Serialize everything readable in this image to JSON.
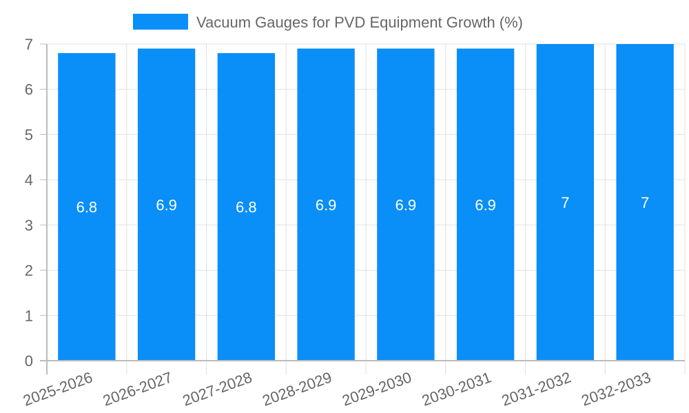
{
  "chart_data": {
    "type": "bar",
    "title": "",
    "legend": {
      "label": "Vacuum Gauges for PVD Equipment Growth (%)",
      "position": "top"
    },
    "categories": [
      "2025-2026",
      "2026-2027",
      "2027-2028",
      "2028-2029",
      "2029-2030",
      "2030-2031",
      "2031-2032",
      "2032-2033"
    ],
    "values": [
      6.8,
      6.9,
      6.8,
      6.9,
      6.9,
      6.9,
      7,
      7
    ],
    "data_labels": [
      "6.8",
      "6.9",
      "6.8",
      "6.9",
      "6.9",
      "6.9",
      "7",
      "7"
    ],
    "xlabel": "",
    "ylabel": "",
    "ylim": [
      0,
      7
    ],
    "yticks": [
      "0",
      "1",
      "2",
      "3",
      "4",
      "5",
      "6",
      "7"
    ],
    "grid": true,
    "bar_color": "#0a8ef8"
  }
}
